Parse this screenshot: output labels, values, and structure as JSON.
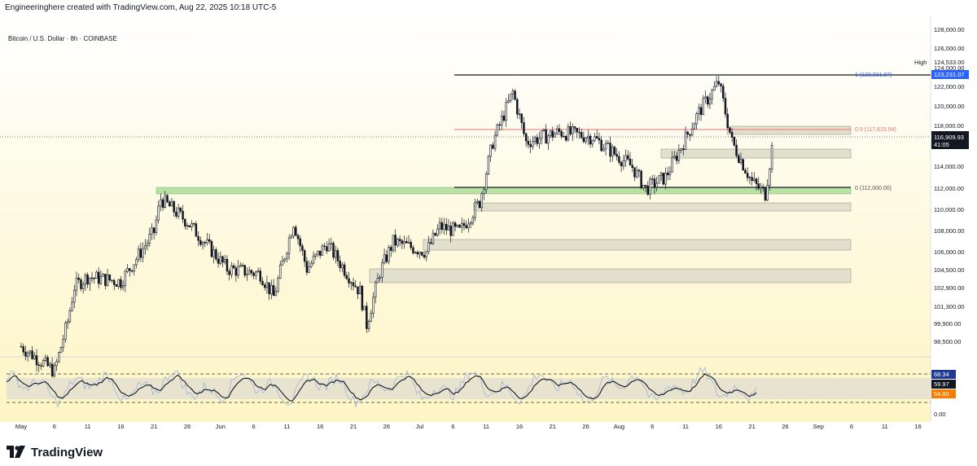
{
  "header": {
    "attribution": "Engineeringhere created with TradingView.com, Aug 22, 2025 10:18 UTC-5",
    "symbol_legend": "Bitcoin / U.S. Dollar · 8h · COINBASE"
  },
  "price_axis": {
    "ticks": [
      "128,000.00",
      "126,000.00",
      "124,000.00",
      "122,000.00",
      "120,000.00",
      "118,000.00",
      "116,000.00",
      "114,000.00",
      "112,000.00",
      "110,000.00",
      "108,000.00",
      "106,000.00",
      "104,500.00",
      "102,900.00",
      "101,300.00",
      "99,900.00",
      "98,500.00"
    ],
    "high_label": "High",
    "high_value": "124,533.00",
    "fib_1_value": "123,231.07",
    "current_price": "116,909.93",
    "countdown": "41:05"
  },
  "fib_labels": {
    "level_1": "1 (123,231.07)",
    "level_05": "0.5 (117,615.54)",
    "level_0": "0 (112,000.00)"
  },
  "oscillator_axis": {
    "labels": [
      "68.34",
      "59.97",
      "54.80",
      "0.00"
    ]
  },
  "time_axis": {
    "labels": [
      "May",
      "6",
      "11",
      "16",
      "21",
      "26",
      "Jun",
      "6",
      "11",
      "16",
      "21",
      "26",
      "Jul",
      "6",
      "11",
      "16",
      "21",
      "26",
      "Aug",
      "6",
      "11",
      "16",
      "21",
      "26",
      "Sep",
      "6",
      "11",
      "16"
    ]
  },
  "footer": {
    "brand": "TradingView"
  },
  "colors": {
    "bg_top": "#ffffff",
    "bg_bottom": "#fdf5c4",
    "candle": "#131722",
    "fib_1": "#2962ff",
    "fib_05": "#e57373",
    "zone_green": "#b9e0a5",
    "zone_gray": "#e2e0cc",
    "price_tag": "#131722",
    "osc_tag_orange": "#f57c00"
  },
  "chart_data": {
    "type": "candlestick",
    "title": "Bitcoin / U.S. Dollar · 8h · COINBASE",
    "ylim": [
      97600,
      128800
    ],
    "fib_levels": [
      {
        "label": "1",
        "value": 123231.07
      },
      {
        "label": "0.5",
        "value": 117615.54
      },
      {
        "label": "0",
        "value": 112000.0
      }
    ],
    "price_path": [
      {
        "x": "May 1",
        "y": 97000
      },
      {
        "x": "May 6",
        "y": 94500
      },
      {
        "x": "May 8",
        "y": 99500
      },
      {
        "x": "May 9",
        "y": 103000
      },
      {
        "x": "May 11",
        "y": 104000
      },
      {
        "x": "May 16",
        "y": 103500
      },
      {
        "x": "May 21",
        "y": 108500
      },
      {
        "x": "May 22",
        "y": 111800
      },
      {
        "x": "May 26",
        "y": 109500
      },
      {
        "x": "Jun 1",
        "y": 104800
      },
      {
        "x": "Jun 6",
        "y": 104300
      },
      {
        "x": "Jun 8",
        "y": 102000
      },
      {
        "x": "Jun 11",
        "y": 109500
      },
      {
        "x": "Jun 13",
        "y": 104800
      },
      {
        "x": "Jun 16",
        "y": 107300
      },
      {
        "x": "Jun 21",
        "y": 102500
      },
      {
        "x": "Jun 22",
        "y": 99200
      },
      {
        "x": "Jun 24",
        "y": 104500
      },
      {
        "x": "Jun 26",
        "y": 107500
      },
      {
        "x": "Jul 1",
        "y": 106500
      },
      {
        "x": "Jul 3",
        "y": 109000
      },
      {
        "x": "Jul 6",
        "y": 108500
      },
      {
        "x": "Jul 9",
        "y": 111500
      },
      {
        "x": "Jul 11",
        "y": 117500
      },
      {
        "x": "Jul 14",
        "y": 122500
      },
      {
        "x": "Jul 16",
        "y": 117500
      },
      {
        "x": "Jul 21",
        "y": 118500
      },
      {
        "x": "Jul 26",
        "y": 118000
      },
      {
        "x": "Aug 1",
        "y": 115000
      },
      {
        "x": "Aug 3",
        "y": 112800
      },
      {
        "x": "Aug 6",
        "y": 114000
      },
      {
        "x": "Aug 11",
        "y": 120500
      },
      {
        "x": "Aug 14",
        "y": 123500
      },
      {
        "x": "Aug 16",
        "y": 117500
      },
      {
        "x": "Aug 19",
        "y": 113500
      },
      {
        "x": "Aug 21",
        "y": 112300
      },
      {
        "x": "Aug 22",
        "y": 116909.93
      }
    ]
  }
}
